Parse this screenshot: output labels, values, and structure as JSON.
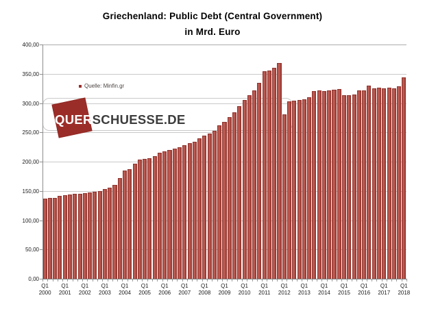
{
  "title_line1": "Griechenland: Public Debt (Central Government)",
  "title_line2": "in Mrd. Euro",
  "legend": {
    "label": "Quelle: Minfin.gr"
  },
  "watermark": {
    "part1": "QUER",
    "part2": "SCHUESSE.DE"
  },
  "colors": {
    "bar_edge": "#8e332d",
    "bar_fill_mid": "#b25048",
    "bar_fill_light": "#c05d55",
    "grid": "#c9c9c9",
    "frame_top": "#ababab",
    "axis": "#7f7f7f",
    "legend_marker": "#9b2d28",
    "watermark_square": "#9b2d28"
  },
  "chart_data": {
    "type": "bar",
    "title": "Griechenland: Public Debt (Central Government) in Mrd. Euro",
    "xlabel": "",
    "ylabel": "",
    "ylim": [
      0,
      400
    ],
    "grid": "horizontal",
    "legend_position": "inside-top-left",
    "y_ticks": [
      "400,00",
      "350,00",
      "300,00",
      "250,00",
      "200,00",
      "150,00",
      "100,00",
      "50,00",
      "0,00"
    ],
    "x_quarter_label": "Q1",
    "years": [
      "2000",
      "2001",
      "2002",
      "2003",
      "2004",
      "2005",
      "2006",
      "2007",
      "2008",
      "2009",
      "2010",
      "2011",
      "2012",
      "2013",
      "2014",
      "2015",
      "2016",
      "2017",
      "2018"
    ],
    "series_name": "Quelle: Minfin.gr",
    "values": [
      136.5,
      137.5,
      138.5,
      141.0,
      143.0,
      144.0,
      144.5,
      145.5,
      146.5,
      147.5,
      148.5,
      150.0,
      153.0,
      156.0,
      160.0,
      172.0,
      184.5,
      187.0,
      197.0,
      203.0,
      204.5,
      206.0,
      209.0,
      215.5,
      217.5,
      219.5,
      222.0,
      224.0,
      228.0,
      231.5,
      234.5,
      239.5,
      245.0,
      248.5,
      252.5,
      262.0,
      268.0,
      276.0,
      284.0,
      295.0,
      305.0,
      313.0,
      322.0,
      334.0,
      354.5,
      355.0,
      360.0,
      368.0,
      280.5,
      303.5,
      304.5,
      305.5,
      306.5,
      310.5,
      320.5,
      321.5,
      320.5,
      321.5,
      322.5,
      324.0,
      313.5,
      313.0,
      315.0,
      321.5,
      322.0,
      330.0,
      325.0,
      326.5,
      325.5,
      326.5,
      325.0,
      328.5,
      344.0
    ]
  }
}
